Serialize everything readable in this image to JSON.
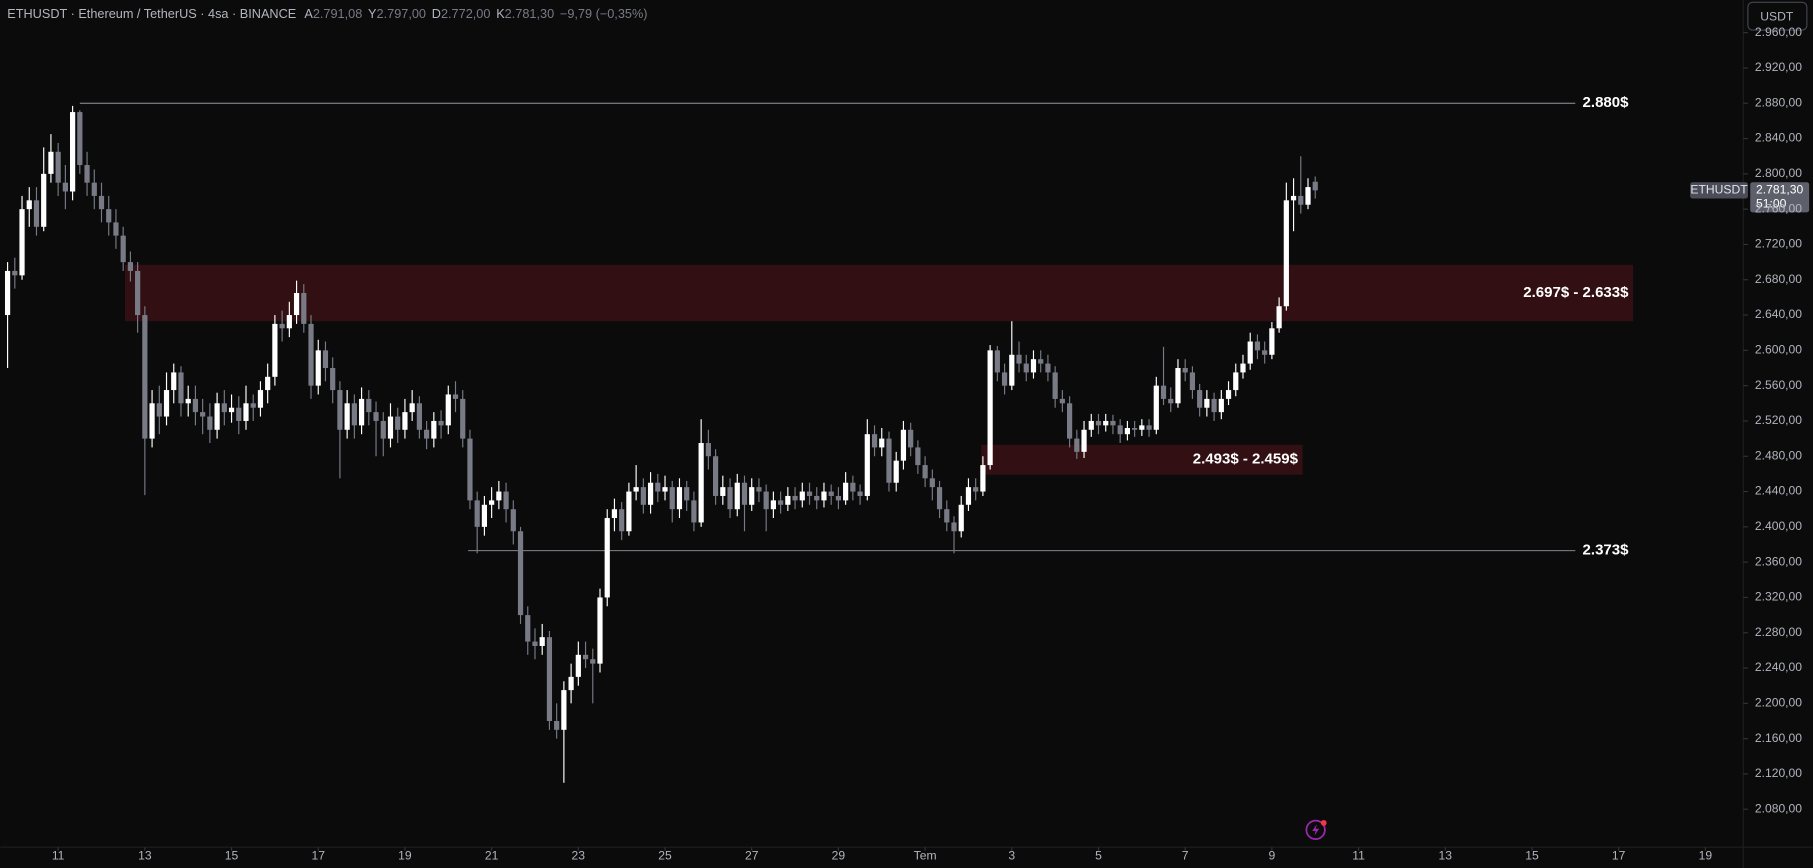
{
  "header": {
    "symbol": "ETHUSDT · Ethereum / TetherUS · 4sa · BINANCE",
    "ohlc": [
      {
        "key": "A",
        "value": "2.791,08"
      },
      {
        "key": "Y",
        "value": "2.797,00"
      },
      {
        "key": "D",
        "value": "2.772,00"
      },
      {
        "key": "K",
        "value": "2.781,30"
      }
    ],
    "change": "−9,79 (−0,35%)"
  },
  "currency_button": "USDT",
  "price_tag": {
    "symbol": "ETHUSDT",
    "price": "2.781,30",
    "countdown": "51:00"
  },
  "chart_data": {
    "type": "candlestick",
    "up_color": "#ffffff",
    "down_color": "#787b86",
    "grid": false,
    "xlim": [
      -32,
      933
    ],
    "ylim": [
      2037,
      2997
    ],
    "xticks": [
      {
        "value": 0,
        "label": "11"
      },
      {
        "value": 48,
        "label": "13"
      },
      {
        "value": 96,
        "label": "15"
      },
      {
        "value": 144,
        "label": "17"
      },
      {
        "value": 192,
        "label": "19"
      },
      {
        "value": 240,
        "label": "21"
      },
      {
        "value": 288,
        "label": "23"
      },
      {
        "value": 336,
        "label": "25"
      },
      {
        "value": 384,
        "label": "27"
      },
      {
        "value": 432,
        "label": "29"
      },
      {
        "value": 480,
        "label": "Tem"
      },
      {
        "value": 528,
        "label": "3"
      },
      {
        "value": 576,
        "label": "5"
      },
      {
        "value": 624,
        "label": "7"
      },
      {
        "value": 672,
        "label": "9"
      },
      {
        "value": 720,
        "label": "11"
      },
      {
        "value": 768,
        "label": "13"
      },
      {
        "value": 816,
        "label": "15"
      },
      {
        "value": 864,
        "label": "17"
      },
      {
        "value": 912,
        "label": "19"
      }
    ],
    "yticks": [
      {
        "value": 2080,
        "label": "2.080,00"
      },
      {
        "value": 2120,
        "label": "2.120,00"
      },
      {
        "value": 2160,
        "label": "2.160,00"
      },
      {
        "value": 2200,
        "label": "2.200,00"
      },
      {
        "value": 2240,
        "label": "2.240,00"
      },
      {
        "value": 2280,
        "label": "2.280,00"
      },
      {
        "value": 2320,
        "label": "2.320,00"
      },
      {
        "value": 2360,
        "label": "2.360,00"
      },
      {
        "value": 2400,
        "label": "2.400,00"
      },
      {
        "value": 2440,
        "label": "2.440,00"
      },
      {
        "value": 2480,
        "label": "2.480,00"
      },
      {
        "value": 2520,
        "label": "2.520,00"
      },
      {
        "value": 2560,
        "label": "2.560,00"
      },
      {
        "value": 2600,
        "label": "2.600,00"
      },
      {
        "value": 2640,
        "label": "2.640,00"
      },
      {
        "value": 2680,
        "label": "2.680,00"
      },
      {
        "value": 2720,
        "label": "2.720,00"
      },
      {
        "value": 2760,
        "label": "2.760,00"
      },
      {
        "value": 2800,
        "label": "2.800,00"
      },
      {
        "value": 2840,
        "label": "2.840,00"
      },
      {
        "value": 2880,
        "label": "2.880,00"
      },
      {
        "value": 2920,
        "label": "2.920,00"
      },
      {
        "value": 2960,
        "label": "2.960,00"
      }
    ],
    "levels": [
      {
        "value": 2880,
        "label": "2.880$",
        "x_from": 12,
        "x_to": 840
      },
      {
        "value": 2373,
        "label": "2.373$",
        "x_from": 227,
        "x_to": 840
      }
    ],
    "zones": [
      {
        "from": 2697,
        "to": 2633,
        "label": "2.697$ - 2.633$",
        "x_from": 37,
        "x_to": 872
      },
      {
        "from": 2493,
        "to": 2459,
        "label": "2.493$ - 2.459$",
        "x_from": 511,
        "x_to": 689
      }
    ],
    "x": [
      -28,
      -24,
      -20,
      -16,
      -12,
      -8,
      -4,
      0,
      4,
      8,
      12,
      16,
      20,
      24,
      28,
      32,
      36,
      40,
      44,
      48,
      52,
      56,
      60,
      64,
      68,
      72,
      76,
      80,
      84,
      88,
      92,
      96,
      100,
      104,
      108,
      112,
      116,
      120,
      124,
      128,
      132,
      136,
      140,
      144,
      148,
      152,
      156,
      160,
      164,
      168,
      172,
      176,
      180,
      184,
      188,
      192,
      196,
      200,
      204,
      208,
      212,
      216,
      220,
      224,
      228,
      232,
      236,
      240,
      244,
      248,
      252,
      256,
      260,
      264,
      268,
      272,
      276,
      280,
      284,
      288,
      292,
      296,
      300,
      304,
      308,
      312,
      316,
      320,
      324,
      328,
      332,
      336,
      340,
      344,
      348,
      352,
      356,
      360,
      364,
      368,
      372,
      376,
      380,
      384,
      388,
      392,
      396,
      400,
      404,
      408,
      412,
      416,
      420,
      424,
      428,
      432,
      436,
      440,
      444,
      448,
      452,
      456,
      460,
      464,
      468,
      472,
      476,
      480,
      484,
      488,
      492,
      496,
      500,
      504,
      508,
      512,
      516,
      520,
      524,
      528,
      532,
      536,
      540,
      544,
      548,
      552,
      556,
      560,
      564,
      568,
      572,
      576,
      580,
      584,
      588,
      592,
      596,
      600,
      604,
      608,
      612,
      616,
      620,
      624,
      628,
      632,
      636,
      640,
      644,
      648,
      652,
      656,
      660,
      664,
      668,
      672,
      676,
      680,
      684,
      688,
      692,
      696
    ],
    "open": [
      2640,
      2690,
      2685,
      2760,
      2770,
      2740,
      2800,
      2825,
      2790,
      2780,
      2870,
      2810,
      2790,
      2775,
      2760,
      2745,
      2730,
      2700,
      2690,
      2640,
      2500,
      2540,
      2525,
      2555,
      2575,
      2540,
      2545,
      2530,
      2525,
      2510,
      2540,
      2530,
      2535,
      2520,
      2540,
      2535,
      2555,
      2570,
      2630,
      2625,
      2640,
      2665,
      2630,
      2560,
      2600,
      2580,
      2555,
      2510,
      2540,
      2515,
      2545,
      2530,
      2520,
      2500,
      2525,
      2510,
      2530,
      2540,
      2510,
      2500,
      2520,
      2515,
      2550,
      2545,
      2500,
      2430,
      2400,
      2425,
      2430,
      2440,
      2420,
      2395,
      2300,
      2270,
      2265,
      2275,
      2180,
      2170,
      2215,
      2230,
      2255,
      2250,
      2245,
      2320,
      2410,
      2420,
      2395,
      2440,
      2445,
      2425,
      2450,
      2440,
      2445,
      2420,
      2445,
      2430,
      2405,
      2495,
      2480,
      2435,
      2445,
      2420,
      2450,
      2425,
      2445,
      2440,
      2420,
      2430,
      2425,
      2435,
      2430,
      2440,
      2435,
      2430,
      2440,
      2435,
      2430,
      2450,
      2440,
      2435,
      2505,
      2490,
      2500,
      2450,
      2475,
      2510,
      2490,
      2470,
      2455,
      2445,
      2420,
      2405,
      2395,
      2425,
      2445,
      2440,
      2470,
      2600,
      2575,
      2560,
      2595,
      2585,
      2575,
      2590,
      2585,
      2575,
      2545,
      2540,
      2500,
      2485,
      2510,
      2520,
      2515,
      2520,
      2515,
      2505,
      2512,
      2510,
      2515,
      2510,
      2560,
      2545,
      2540,
      2580,
      2575,
      2555,
      2535,
      2545,
      2530,
      2545,
      2555,
      2575,
      2585,
      2610,
      2600,
      2595,
      2625,
      2650,
      2770,
      2775,
      2765,
      2791.08
    ],
    "high": [
      2700,
      2705,
      2775,
      2785,
      2785,
      2830,
      2845,
      2835,
      2810,
      2877,
      2872,
      2825,
      2805,
      2790,
      2775,
      2760,
      2740,
      2712,
      2700,
      2650,
      2555,
      2560,
      2575,
      2585,
      2582,
      2560,
      2560,
      2545,
      2540,
      2552,
      2555,
      2550,
      2548,
      2560,
      2550,
      2565,
      2585,
      2640,
      2645,
      2655,
      2679,
      2675,
      2640,
      2612,
      2610,
      2592,
      2565,
      2555,
      2550,
      2558,
      2555,
      2542,
      2530,
      2540,
      2535,
      2545,
      2555,
      2548,
      2520,
      2530,
      2532,
      2560,
      2565,
      2555,
      2510,
      2440,
      2435,
      2445,
      2452,
      2450,
      2430,
      2400,
      2310,
      2285,
      2290,
      2282,
      2200,
      2225,
      2245,
      2270,
      2270,
      2262,
      2330,
      2420,
      2432,
      2428,
      2450,
      2470,
      2455,
      2462,
      2460,
      2458,
      2452,
      2455,
      2452,
      2440,
      2522,
      2510,
      2488,
      2458,
      2455,
      2460,
      2458,
      2455,
      2455,
      2448,
      2440,
      2440,
      2445,
      2445,
      2450,
      2450,
      2445,
      2450,
      2448,
      2445,
      2462,
      2458,
      2448,
      2522,
      2515,
      2512,
      2508,
      2485,
      2520,
      2518,
      2498,
      2480,
      2465,
      2452,
      2430,
      2412,
      2435,
      2455,
      2455,
      2480,
      2606,
      2605,
      2585,
      2633,
      2610,
      2595,
      2600,
      2600,
      2595,
      2582,
      2555,
      2548,
      2510,
      2520,
      2528,
      2528,
      2528,
      2527,
      2522,
      2520,
      2520,
      2522,
      2522,
      2570,
      2604,
      2558,
      2590,
      2590,
      2582,
      2562,
      2555,
      2552,
      2555,
      2565,
      2585,
      2595,
      2620,
      2618,
      2610,
      2632,
      2660,
      2790,
      2795,
      2820,
      2795,
      2797
    ],
    "low": [
      2580,
      2670,
      2680,
      2740,
      2730,
      2735,
      2790,
      2775,
      2760,
      2770,
      2800,
      2775,
      2760,
      2745,
      2730,
      2715,
      2690,
      2678,
      2620,
      2436,
      2490,
      2505,
      2515,
      2540,
      2525,
      2525,
      2515,
      2505,
      2495,
      2500,
      2515,
      2518,
      2505,
      2510,
      2520,
      2525,
      2540,
      2560,
      2610,
      2615,
      2630,
      2620,
      2545,
      2550,
      2565,
      2540,
      2455,
      2500,
      2500,
      2505,
      2515,
      2480,
      2480,
      2490,
      2495,
      2500,
      2520,
      2500,
      2488,
      2490,
      2500,
      2505,
      2530,
      2490,
      2420,
      2370,
      2390,
      2410,
      2420,
      2405,
      2380,
      2290,
      2255,
      2250,
      2255,
      2170,
      2160,
      2110,
      2200,
      2220,
      2240,
      2200,
      2235,
      2310,
      2395,
      2385,
      2390,
      2430,
      2415,
      2415,
      2428,
      2430,
      2405,
      2410,
      2418,
      2395,
      2400,
      2465,
      2425,
      2425,
      2410,
      2412,
      2395,
      2418,
      2428,
      2395,
      2410,
      2415,
      2418,
      2420,
      2422,
      2425,
      2420,
      2422,
      2425,
      2420,
      2425,
      2430,
      2425,
      2430,
      2480,
      2480,
      2440,
      2440,
      2465,
      2480,
      2460,
      2445,
      2430,
      2410,
      2395,
      2370,
      2388,
      2418,
      2430,
      2435,
      2465,
      2565,
      2550,
      2555,
      2575,
      2565,
      2568,
      2575,
      2565,
      2535,
      2530,
      2490,
      2477,
      2478,
      2502,
      2505,
      2508,
      2505,
      2495,
      2498,
      2502,
      2503,
      2502,
      2505,
      2538,
      2530,
      2535,
      2565,
      2545,
      2525,
      2525,
      2520,
      2522,
      2538,
      2548,
      2568,
      2578,
      2590,
      2585,
      2590,
      2620,
      2645,
      2735,
      2755,
      2760,
      2772
    ],
    "close": [
      2690,
      2685,
      2760,
      2770,
      2740,
      2800,
      2825,
      2790,
      2780,
      2870,
      2810,
      2790,
      2775,
      2760,
      2745,
      2730,
      2700,
      2690,
      2640,
      2500,
      2540,
      2525,
      2555,
      2575,
      2540,
      2545,
      2530,
      2525,
      2510,
      2540,
      2530,
      2535,
      2520,
      2540,
      2535,
      2555,
      2570,
      2630,
      2625,
      2640,
      2665,
      2630,
      2560,
      2600,
      2580,
      2555,
      2510,
      2540,
      2515,
      2545,
      2530,
      2520,
      2500,
      2525,
      2510,
      2530,
      2540,
      2510,
      2500,
      2520,
      2515,
      2550,
      2545,
      2500,
      2430,
      2400,
      2425,
      2430,
      2440,
      2420,
      2395,
      2300,
      2270,
      2265,
      2275,
      2180,
      2170,
      2215,
      2230,
      2255,
      2250,
      2245,
      2320,
      2410,
      2420,
      2395,
      2440,
      2445,
      2425,
      2450,
      2440,
      2445,
      2420,
      2445,
      2430,
      2405,
      2495,
      2480,
      2435,
      2445,
      2420,
      2450,
      2425,
      2445,
      2440,
      2420,
      2430,
      2425,
      2435,
      2430,
      2440,
      2435,
      2430,
      2440,
      2435,
      2430,
      2450,
      2440,
      2435,
      2505,
      2490,
      2500,
      2450,
      2475,
      2510,
      2490,
      2470,
      2455,
      2445,
      2420,
      2405,
      2395,
      2425,
      2445,
      2440,
      2470,
      2600,
      2575,
      2560,
      2595,
      2585,
      2575,
      2590,
      2585,
      2575,
      2545,
      2540,
      2500,
      2485,
      2510,
      2520,
      2515,
      2520,
      2515,
      2505,
      2512,
      2510,
      2515,
      2510,
      2560,
      2545,
      2540,
      2580,
      2575,
      2555,
      2535,
      2545,
      2530,
      2545,
      2555,
      2575,
      2585,
      2610,
      2600,
      2595,
      2625,
      2650,
      2770,
      2775,
      2765,
      2785,
      2781.3
    ]
  }
}
